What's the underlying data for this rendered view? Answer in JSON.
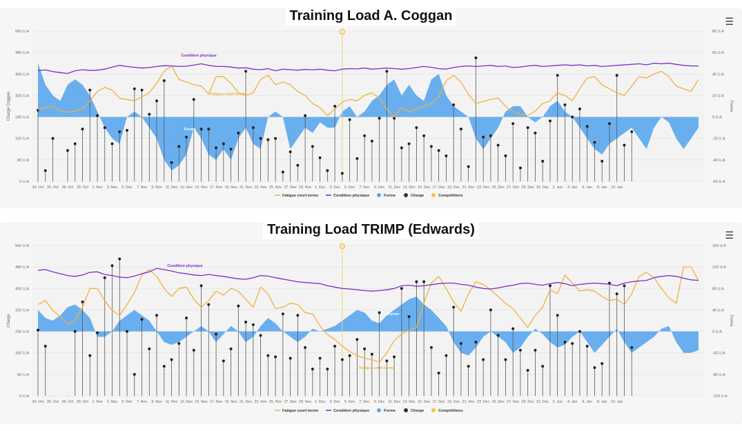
{
  "menu_icon": "hamburger-menu-icon",
  "colors": {
    "fatigue": "#f0b13a",
    "condition": "#7b2cc8",
    "forme": "#5aa7ee",
    "charge": "#333333",
    "competitions": "#f5c542"
  },
  "legend": [
    "Fatigue court terme",
    "Condition physique",
    "Forme",
    "Charge",
    "Compétitions"
  ],
  "chart_data": [
    {
      "type": "line",
      "title": "Training Load A. Coggan",
      "ylabel": "Charge Coggan",
      "y2label": "Forme",
      "ylim": [
        0,
        560
      ],
      "y2lim": [
        -60,
        80
      ],
      "yticks": [
        "0 U.A",
        "80 U.A",
        "160 U.A",
        "240 U.A",
        "320 U.A",
        "400 U.A",
        "480 U.A",
        "560 U.A"
      ],
      "y2ticks": [
        "-60 U.A",
        "-40 U.A",
        "-20 U.A",
        "0 U.A",
        "20 U.A",
        "40 U.A",
        "60 U.A",
        "80 U.A"
      ],
      "xticks": [
        "24. Oct",
        "26. Oct",
        "28. Oct",
        "30. Oct",
        "1. Nov",
        "3. Nov",
        "5. Nov",
        "7. Nov",
        "9. Nov",
        "11. Nov",
        "13. Nov",
        "15. Nov",
        "17. Nov",
        "19. Nov",
        "21. Nov",
        "23. Nov",
        "25. Nov",
        "27. Nov",
        "29. Nov",
        "1. Dec",
        "3. Dec",
        "5. Dec",
        "7. Dec",
        "9. Dec",
        "11. Dec",
        "13. Dec",
        "15. Dec",
        "17. Dec",
        "19. Dec",
        "21. Dec",
        "23. Dec",
        "25. Dec",
        "27. Dec",
        "29. Dec",
        "31. Dec",
        "2. Jan",
        "4. Jan",
        "6. Jan",
        "8. Jan",
        "10. Jan"
      ],
      "annotations": [
        "Condition physique",
        "Fatigue court terme",
        "Forme"
      ],
      "series": [
        {
          "name": "Condition physique",
          "values": [
            413,
            415,
            409,
            405,
            402,
            412,
            416,
            413,
            414,
            418,
            426,
            432,
            428,
            425,
            422,
            424,
            428,
            431,
            430,
            428,
            429,
            433,
            438,
            432,
            428,
            428,
            426,
            422,
            423,
            418,
            416,
            420,
            412,
            418,
            416,
            414,
            417,
            415,
            418,
            414,
            412,
            418,
            420,
            419,
            422,
            418,
            420,
            422,
            420,
            418,
            420,
            424,
            428,
            425,
            420,
            418,
            424,
            428,
            430,
            428,
            430,
            432,
            428,
            430,
            424,
            426,
            430,
            432,
            428,
            430,
            432,
            434,
            432,
            434,
            430,
            432,
            428,
            430,
            432,
            434,
            436,
            438,
            434,
            440,
            438,
            440,
            436,
            432,
            430,
            430
          ]
        },
        {
          "name": "Fatigue court terme",
          "values": [
            265,
            275,
            280,
            263,
            258,
            262,
            270,
            300,
            335,
            350,
            340,
            310,
            305,
            300,
            315,
            330,
            365,
            410,
            430,
            380,
            370,
            360,
            355,
            325,
            390,
            390,
            365,
            330,
            320,
            330,
            380,
            395,
            360,
            370,
            360,
            335,
            320,
            290,
            275,
            245,
            270,
            295,
            305,
            300,
            320,
            330,
            310,
            270,
            240,
            275,
            258,
            270,
            280,
            290,
            315,
            375,
            395,
            370,
            325,
            290,
            298,
            305,
            310,
            280,
            260,
            250,
            245,
            262,
            290,
            300,
            330,
            320,
            300,
            345,
            385,
            390,
            360,
            345,
            330,
            320,
            355,
            390,
            385,
            400,
            410,
            390,
            355,
            345,
            335,
            380
          ]
        },
        {
          "name": "Forme",
          "values": [
            50,
            30,
            20,
            15,
            30,
            35,
            30,
            20,
            5,
            -10,
            -20,
            -25,
            0,
            5,
            0,
            -10,
            -20,
            -40,
            -50,
            -45,
            -35,
            -10,
            -20,
            -35,
            -40,
            -30,
            -40,
            -20,
            -10,
            -25,
            -30,
            0,
            5,
            0,
            -30,
            -20,
            -10,
            -15,
            -5,
            -10,
            -10,
            5,
            10,
            0,
            5,
            15,
            20,
            30,
            35,
            20,
            30,
            20,
            15,
            35,
            40,
            20,
            10,
            5,
            0,
            -20,
            -30,
            -20,
            -10,
            5,
            10,
            10,
            0,
            -5,
            0,
            10,
            15,
            5,
            0,
            -10,
            -20,
            -30,
            -35,
            -25,
            -20,
            -15,
            -10,
            -20,
            -30,
            -10,
            0,
            -5,
            -20,
            -30,
            -20,
            -10
          ]
        },
        {
          "name": "Charge",
          "x_days": [
            0,
            1,
            2,
            4,
            5,
            6,
            7,
            8,
            9,
            10,
            11,
            12,
            13,
            14,
            15,
            16,
            17,
            18,
            19,
            20,
            21,
            22,
            23,
            24,
            25,
            26,
            27,
            28,
            29,
            30,
            31,
            32,
            33,
            34,
            35,
            36,
            37,
            38,
            39,
            40,
            41,
            42,
            43,
            44,
            45,
            46,
            47,
            48,
            49,
            50,
            51,
            52,
            53,
            54,
            55,
            56,
            57,
            58,
            59,
            60,
            61,
            62,
            63,
            64,
            65,
            66,
            67,
            68,
            69,
            70,
            71,
            72,
            73,
            74,
            75,
            76,
            77,
            78,
            79,
            80
          ],
          "values": [
            265,
            40,
            160,
            115,
            140,
            195,
            340,
            245,
            200,
            140,
            185,
            190,
            345,
            340,
            250,
            300,
            375,
            70,
            130,
            165,
            305,
            195,
            195,
            125,
            140,
            120,
            180,
            410,
            200,
            160,
            155,
            160,
            35,
            110,
            60,
            245,
            130,
            88,
            40,
            280,
            30,
            230,
            85,
            170,
            150,
            235,
            410,
            235,
            125,
            140,
            200,
            170,
            130,
            115,
            95,
            285,
            195,
            55,
            460,
            165,
            170,
            135,
            95,
            215,
            50,
            200,
            180,
            75,
            225,
            395,
            285,
            240,
            270,
            205,
            145,
            75,
            215,
            395,
            135,
            185
          ]
        },
        {
          "name": "Compétitions",
          "x_days": [
            41
          ],
          "values": [
            560
          ]
        }
      ]
    },
    {
      "type": "line",
      "title": "Training Load TRIMP (Edwards)",
      "ylabel": "Charge",
      "y2label": "Forme",
      "ylim": [
        0,
        560
      ],
      "y2lim": [
        -120,
        160
      ],
      "yticks": [
        "0 U.A",
        "80 U.A",
        "160 U.A",
        "240 U.A",
        "320 U.A",
        "400 U.A",
        "480 U.A",
        "560 U.A"
      ],
      "y2ticks": [
        "-120 U.A",
        "-80 U.A",
        "-40 U.A",
        "0 U.A",
        "40 U.A",
        "80 U.A",
        "120 U.A",
        "160 U.A"
      ],
      "xticks": [
        "24. Oct",
        "26. Oct",
        "28. Oct",
        "30. Oct",
        "1. Nov",
        "3. Nov",
        "5. Nov",
        "7. Nov",
        "9. Nov",
        "11. Nov",
        "13. Nov",
        "15. Nov",
        "17. Nov",
        "19. Nov",
        "21. Nov",
        "23. Nov",
        "25. Nov",
        "27. Nov",
        "29. Nov",
        "1. Dec",
        "3. Dec",
        "5. Dec",
        "7. Dec",
        "9. Dec",
        "11. Dec",
        "13. Dec",
        "15. Dec",
        "17. Dec",
        "19. Dec",
        "21. Dec",
        "23. Dec",
        "25. Dec",
        "27. Dec",
        "29. Dec",
        "31. Dec",
        "2. Jan",
        "4. Jan",
        "6. Jan",
        "8. Jan",
        "10. Jan"
      ],
      "annotations": [
        "Condition physique",
        "Fatigue court terme",
        "Forme"
      ],
      "series": [
        {
          "name": "Condition physique",
          "values": [
            468,
            470,
            462,
            455,
            448,
            445,
            450,
            460,
            462,
            452,
            448,
            442,
            440,
            446,
            455,
            462,
            475,
            470,
            465,
            458,
            455,
            450,
            448,
            452,
            448,
            445,
            440,
            436,
            434,
            440,
            448,
            446,
            440,
            435,
            430,
            425,
            422,
            420,
            418,
            410,
            405,
            400,
            398,
            395,
            392,
            390,
            392,
            395,
            400,
            410,
            412,
            408,
            410,
            414,
            418,
            420,
            420,
            415,
            412,
            405,
            400,
            398,
            402,
            408,
            412,
            418,
            420,
            415,
            412,
            418,
            422,
            418,
            410,
            415,
            418,
            420,
            418,
            416,
            410,
            420,
            425,
            428,
            430,
            440,
            445,
            448,
            445,
            438,
            432,
            430
          ]
        },
        {
          "name": "Fatigue court terme",
          "values": [
            340,
            355,
            318,
            295,
            265,
            280,
            330,
            400,
            400,
            355,
            318,
            300,
            340,
            385,
            450,
            470,
            445,
            400,
            370,
            400,
            405,
            360,
            330,
            355,
            390,
            375,
            400,
            390,
            360,
            330,
            405,
            380,
            325,
            330,
            345,
            340,
            310,
            305,
            260,
            228,
            210,
            185,
            165,
            150,
            140,
            135,
            125,
            160,
            205,
            230,
            245,
            255,
            345,
            420,
            445,
            400,
            350,
            315,
            380,
            425,
            415,
            395,
            370,
            345,
            325,
            290,
            255,
            300,
            330,
            395,
            380,
            450,
            420,
            390,
            395,
            390,
            370,
            355,
            360,
            340,
            380,
            445,
            460,
            440,
            400,
            365,
            345,
            480,
            480,
            430
          ]
        },
        {
          "name": "Forme",
          "values": [
            40,
            25,
            20,
            30,
            45,
            50,
            40,
            25,
            -10,
            -10,
            0,
            20,
            30,
            40,
            30,
            20,
            0,
            -20,
            -25,
            -20,
            -10,
            0,
            10,
            0,
            -20,
            -5,
            10,
            0,
            -20,
            -10,
            10,
            25,
            15,
            0,
            -10,
            -20,
            -10,
            5,
            0,
            5,
            10,
            20,
            30,
            40,
            35,
            20,
            15,
            30,
            40,
            50,
            60,
            65,
            50,
            40,
            25,
            10,
            -20,
            -40,
            -45,
            -30,
            -10,
            0,
            -10,
            -20,
            -40,
            -30,
            -10,
            5,
            -5,
            -20,
            -30,
            -25,
            -10,
            0,
            -20,
            -40,
            -25,
            -10,
            5,
            -20,
            -40,
            -30,
            -20,
            -10,
            5,
            10,
            -20,
            -40,
            -40,
            -35
          ]
        },
        {
          "name": "Charge",
          "x_days": [
            0,
            1,
            5,
            6,
            7,
            8,
            9,
            10,
            11,
            12,
            13,
            14,
            15,
            16,
            17,
            18,
            19,
            20,
            21,
            22,
            23,
            24,
            25,
            26,
            27,
            28,
            29,
            30,
            31,
            32,
            33,
            34,
            35,
            36,
            37,
            38,
            39,
            40,
            41,
            42,
            43,
            44,
            45,
            46,
            47,
            48,
            49,
            50,
            51,
            52,
            53,
            54,
            55,
            56,
            57,
            58,
            59,
            60,
            61,
            62,
            63,
            64,
            65,
            66,
            67,
            68,
            69,
            70,
            71,
            72,
            73,
            74,
            75,
            76,
            77,
            78,
            79,
            80
          ],
          "values": [
            245,
            185,
            240,
            350,
            150,
            235,
            440,
            485,
            510,
            240,
            80,
            285,
            175,
            300,
            110,
            135,
            195,
            290,
            170,
            410,
            340,
            230,
            130,
            175,
            335,
            275,
            265,
            225,
            150,
            145,
            305,
            140,
            300,
            180,
            100,
            140,
            100,
            185,
            135,
            150,
            210,
            175,
            155,
            310,
            130,
            145,
            400,
            295,
            425,
            425,
            180,
            85,
            150,
            330,
            195,
            110,
            200,
            135,
            320,
            225,
            135,
            250,
            170,
            95,
            170,
            110,
            410,
            300,
            200,
            195,
            240,
            185,
            105,
            120,
            420,
            380,
            410,
            180
          ]
        },
        {
          "name": "Compétitions",
          "x_days": [
            41
          ],
          "values": [
            560
          ]
        }
      ]
    }
  ]
}
